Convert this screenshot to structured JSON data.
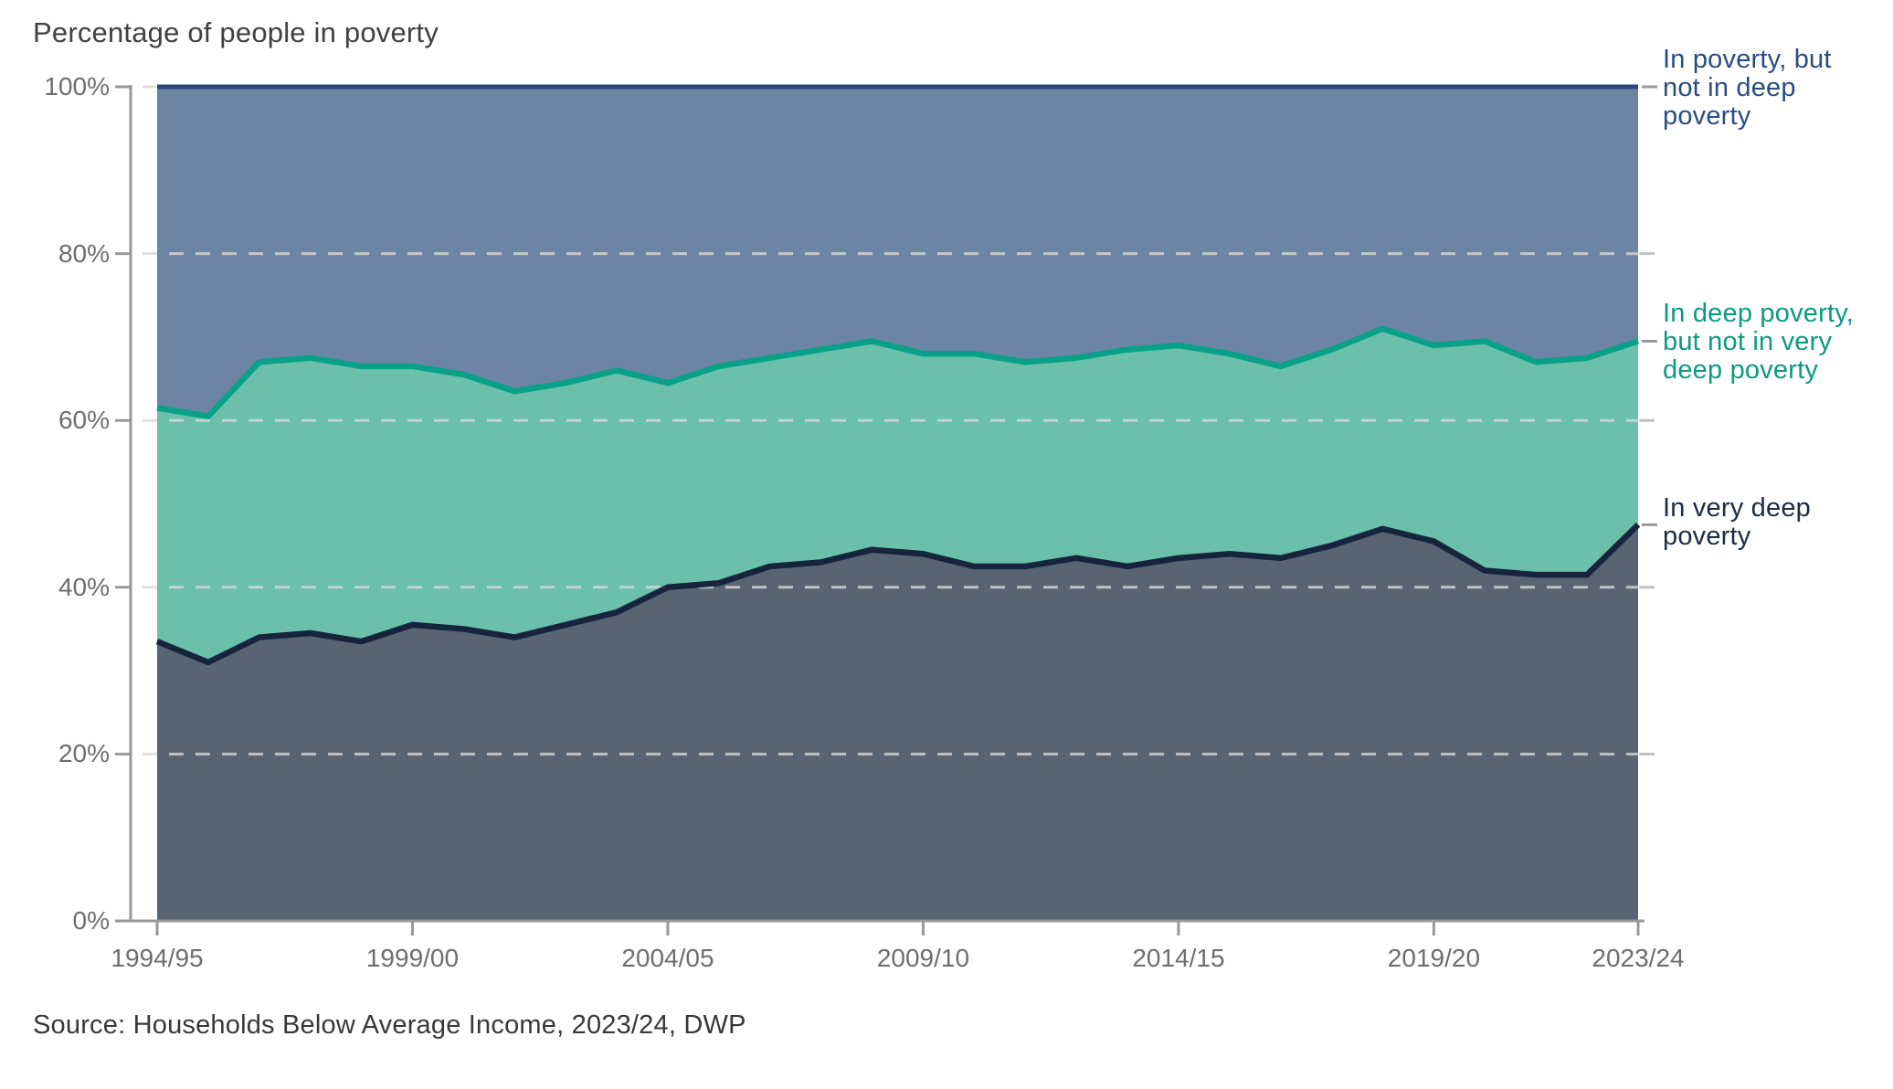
{
  "title": "Percentage of people in poverty",
  "source": "Source: Households Below Average Income, 2023/24, DWP",
  "colors": {
    "background": "#ffffff",
    "title_text": "#414141",
    "axis_line": "#999999",
    "axis_tick": "#999999",
    "right_edge_tick": "#c0c0c0",
    "gridline": "#d9d9d9",
    "axis_text": "#6e6e6e",
    "source_text": "#383838"
  },
  "axes": {
    "y": {
      "ticks": [
        0,
        20,
        40,
        60,
        80,
        100
      ],
      "tick_labels": [
        "0%",
        "20%",
        "40%",
        "60%",
        "80%",
        "100%"
      ],
      "range": [
        0,
        100
      ],
      "gridlines_at": [
        20,
        40,
        60,
        80
      ],
      "grid_style": "dashed"
    },
    "x": {
      "tick_labels": [
        "1994/95",
        "1999/00",
        "2004/05",
        "2009/10",
        "2014/15",
        "2019/20",
        "2023/24"
      ],
      "tick_indices": [
        0,
        5,
        10,
        15,
        20,
        25,
        29
      ]
    }
  },
  "chart_data": {
    "type": "area",
    "stacked": true,
    "title": "Percentage of people in poverty",
    "ylim": [
      0,
      100
    ],
    "legend_position": "right-of-plot",
    "x_categories": [
      "1994/95",
      "1995/96",
      "1996/97",
      "1997/98",
      "1998/99",
      "1999/00",
      "2000/01",
      "2001/02",
      "2002/03",
      "2003/04",
      "2004/05",
      "2005/06",
      "2006/07",
      "2007/08",
      "2008/09",
      "2009/10",
      "2010/11",
      "2011/12",
      "2012/13",
      "2013/14",
      "2014/15",
      "2015/16",
      "2016/17",
      "2017/18",
      "2018/19",
      "2019/20",
      "2020/21",
      "2021/22",
      "2022/23",
      "2023/24"
    ],
    "series": [
      {
        "name": "In very deep poverty",
        "label": "In very deep\npoverty",
        "label_color": "#1d2b45",
        "fill": "#586471",
        "line": "#16243c",
        "cumulative_top": [
          33.5,
          31,
          34,
          34.5,
          33.5,
          35.5,
          35,
          34,
          35.5,
          37,
          40,
          40.5,
          42.5,
          43,
          44.5,
          44,
          42.5,
          42.5,
          43.5,
          42.5,
          43.5,
          44,
          43.5,
          45,
          47,
          45.5,
          42,
          41.5,
          41.5,
          47.5
        ],
        "segment_values": [
          33.5,
          31,
          34,
          34.5,
          33.5,
          35.5,
          35,
          34,
          35.5,
          37,
          40,
          40.5,
          42.5,
          43,
          44.5,
          44,
          42.5,
          42.5,
          43.5,
          42.5,
          43.5,
          44,
          43.5,
          45,
          47,
          45.5,
          42,
          41.5,
          41.5,
          47.5
        ]
      },
      {
        "name": "In deep poverty, but not in very deep poverty",
        "label": "In deep poverty,\nbut not in very\ndeep poverty",
        "label_color": "#0c9b80",
        "fill": "#6ac0ab",
        "line": "#0aa189",
        "cumulative_top": [
          61.5,
          60.5,
          67,
          67.5,
          66.5,
          66.5,
          65.5,
          63.5,
          64.5,
          66,
          64.5,
          66.5,
          67.5,
          68.5,
          69.5,
          68,
          68,
          67,
          67.5,
          68.5,
          69,
          68,
          66.5,
          68.5,
          71,
          69,
          69.5,
          67,
          67.5,
          69.5
        ],
        "segment_values": [
          28,
          29.5,
          33,
          33,
          33,
          31,
          30.5,
          29.5,
          29,
          29,
          24.5,
          26,
          25,
          25.5,
          25,
          24,
          25.5,
          24.5,
          24,
          26,
          25.5,
          24,
          23,
          23.5,
          24,
          23.5,
          27.5,
          25.5,
          26,
          22
        ]
      },
      {
        "name": "In poverty, but not in deep poverty",
        "label": "In poverty, but\nnot in deep\npoverty",
        "label_color": "#2a4d80",
        "fill": "#6d85a4",
        "line": "#27497b",
        "cumulative_top": [
          100,
          100,
          100,
          100,
          100,
          100,
          100,
          100,
          100,
          100,
          100,
          100,
          100,
          100,
          100,
          100,
          100,
          100,
          100,
          100,
          100,
          100,
          100,
          100,
          100,
          100,
          100,
          100,
          100,
          100
        ],
        "segment_values": [
          38.5,
          39.5,
          33,
          32.5,
          33.5,
          33.5,
          34.5,
          36.5,
          35.5,
          34,
          35.5,
          33.5,
          32.5,
          31.5,
          30.5,
          32,
          32,
          33,
          32.5,
          31.5,
          31,
          32,
          33.5,
          31.5,
          29,
          31,
          30.5,
          33,
          32.5,
          30.5
        ]
      }
    ]
  }
}
